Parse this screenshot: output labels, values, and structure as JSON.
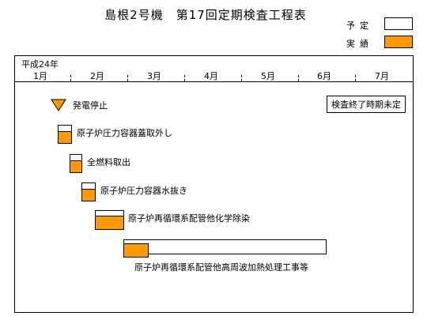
{
  "title": "島根2号機　第17回定期検査工程表",
  "legend": {
    "plan_label": "予定",
    "actual_label": "実績",
    "plan_color": "#FFFFFF",
    "actual_color": "#FF9900"
  },
  "timeline": {
    "year_label": "平成24年",
    "months": [
      "1月",
      "2月",
      "3月",
      "4月",
      "5月",
      "6月",
      "7月"
    ]
  },
  "milestone": {
    "label": "発電停止",
    "color": "#FF9900"
  },
  "tasks": [
    {
      "label": "原子炉圧力容器蓋取外し"
    },
    {
      "label": "全燃料取出"
    },
    {
      "label": "原子炉圧力容器水抜き"
    },
    {
      "label": "原子炉再循環系配管他化学除染"
    },
    {
      "label": "原子炉再循環系配管他高周波加熱処理工事等"
    }
  ],
  "note": "検査終了時期未定"
}
